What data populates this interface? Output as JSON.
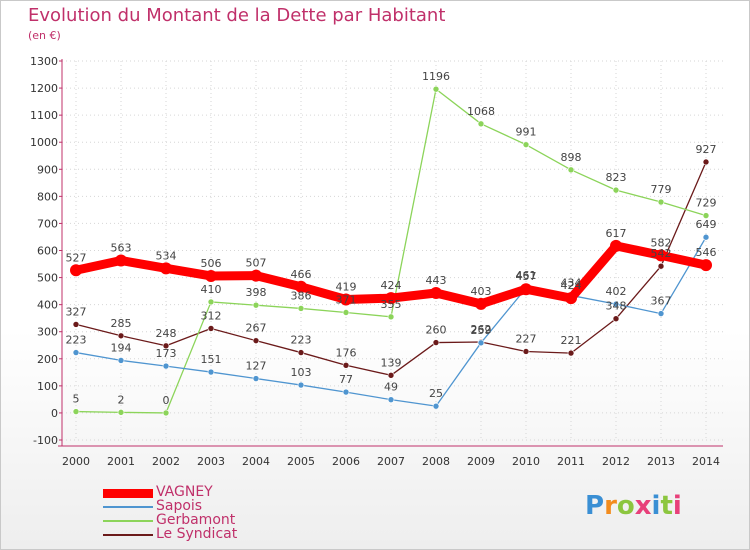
{
  "title": "Evolution du Montant de la Dette par Habitant",
  "unit": "(en €)",
  "logo": {
    "text": "Proxiti",
    "colors": [
      "#3a8fd4",
      "#f28c1e",
      "#8cc63f",
      "#e8407a",
      "#3a8fd4",
      "#8cc63f",
      "#e8407a"
    ]
  },
  "chart_data": {
    "type": "line",
    "x": [
      2000,
      2001,
      2002,
      2003,
      2004,
      2005,
      2006,
      2007,
      2008,
      2009,
      2010,
      2011,
      2012,
      2013,
      2014
    ],
    "ylim": [
      -100,
      1300
    ],
    "yticks": [
      -100,
      0,
      100,
      200,
      300,
      400,
      500,
      600,
      700,
      800,
      900,
      1000,
      1100,
      1200,
      1300
    ],
    "grid": true,
    "legend_position": "bottom-left",
    "series": [
      {
        "name": "VAGNEY",
        "color": "#ff0000",
        "values": [
          527,
          563,
          534,
          506,
          507,
          466,
          419,
          424,
          443,
          403,
          457,
          424,
          617,
          582,
          546
        ]
      },
      {
        "name": "Sapois",
        "color": "#4f95d0",
        "values": [
          223,
          194,
          173,
          151,
          127,
          103,
          77,
          49,
          25,
          259,
          461,
          434,
          402,
          367,
          649
        ]
      },
      {
        "name": "Gerbamont",
        "color": "#8cd45a",
        "values": [
          5,
          2,
          0,
          410,
          398,
          386,
          371,
          355,
          1196,
          1068,
          991,
          898,
          823,
          779,
          729
        ]
      },
      {
        "name": "Le Syndicat",
        "color": "#6b1a1a",
        "values": [
          327,
          285,
          248,
          312,
          267,
          223,
          176,
          139,
          260,
          262,
          227,
          221,
          348,
          542,
          927
        ]
      }
    ]
  }
}
